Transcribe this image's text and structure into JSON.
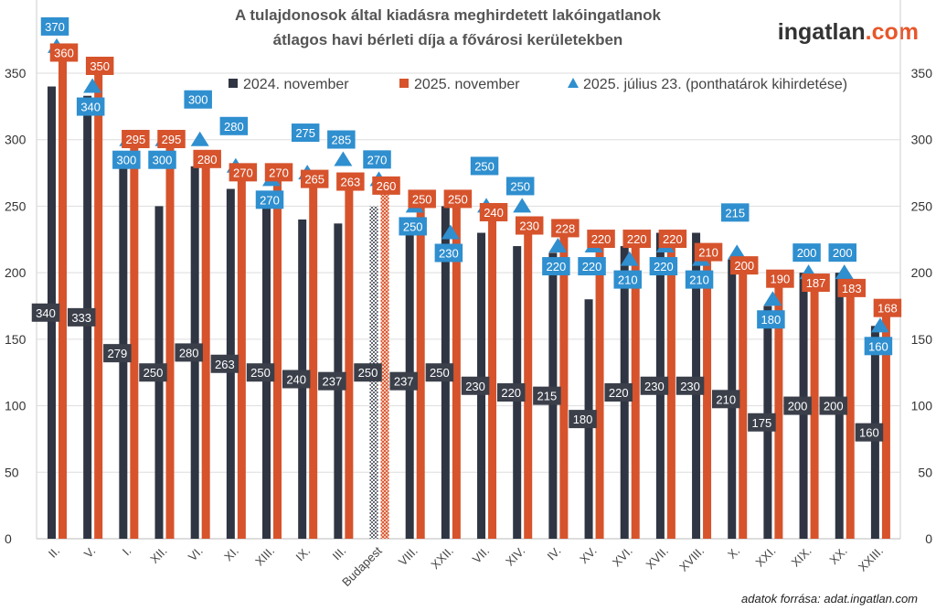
{
  "logo": {
    "text": "ingatlan",
    "suffix": ".com",
    "color_main": "#333333",
    "color_suffix": "#e8562a"
  },
  "source": "adatok forrása: adat.ingatlan.com",
  "chart_data": {
    "type": "bar",
    "title": [
      "A tulajdonosok által kiadásra meghirdetett lakóingatlanok",
      "átlagos havi bérleti díja a fővárosi kerületekben"
    ],
    "categories": [
      "II.",
      "V.",
      "I.",
      "XII.",
      "VI.",
      "XI.",
      "XIII.",
      "IX.",
      "III.",
      "Budapest",
      "VIII.",
      "XXII.",
      "VII.",
      "XIV.",
      "IV.",
      "XV.",
      "XVI.",
      "XVII.",
      "XVIII.",
      "X.",
      "XXI.",
      "XIX.",
      "XX.",
      "XXIII."
    ],
    "highlight_category": "Budapest",
    "series": [
      {
        "name": "2024. november",
        "type": "bar",
        "color": "#2f3542",
        "values": [
          340,
          333,
          279,
          250,
          280,
          263,
          250,
          240,
          237,
          250,
          237,
          250,
          230,
          220,
          215,
          180,
          220,
          230,
          230,
          210,
          175,
          200,
          200,
          160
        ]
      },
      {
        "name": "2025. november",
        "type": "bar",
        "color": "#d6532c",
        "values": [
          360,
          350,
          295,
          295,
          280,
          270,
          270,
          265,
          263,
          260,
          250,
          250,
          240,
          230,
          228,
          220,
          220,
          220,
          210,
          200,
          190,
          187,
          183,
          168
        ]
      },
      {
        "name": "2025. július 23. (ponthatárok kihirdetése)",
        "type": "marker-triangle",
        "color": "#2f8fcf",
        "values": [
          370,
          340,
          300,
          300,
          300,
          280,
          270,
          275,
          285,
          270,
          250,
          230,
          250,
          250,
          220,
          220,
          210,
          220,
          210,
          215,
          180,
          200,
          200,
          160
        ]
      }
    ],
    "yticks": [
      0,
      50,
      100,
      150,
      200,
      250,
      300,
      350
    ],
    "ylim": [
      0,
      350
    ],
    "y_axis_both_sides": true,
    "grid": true,
    "legend": "top"
  }
}
